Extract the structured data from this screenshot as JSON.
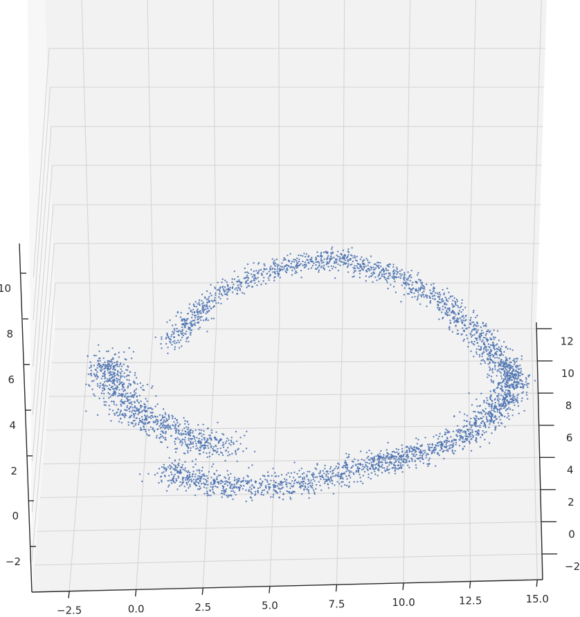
{
  "chart_data": {
    "type": "scatter",
    "projection": "3d",
    "title": "",
    "xlabel": "",
    "ylabel": "",
    "zlabel": "",
    "grid": true,
    "marker_color": "#4c72b0",
    "pane_color": "#f2f2f2",
    "x_ticks": [
      "−2.5",
      "0.0",
      "2.5",
      "5.0",
      "7.5",
      "10.0",
      "12.5",
      "15.0"
    ],
    "y_ticks": [
      "−2",
      "0",
      "2",
      "4",
      "6",
      "8",
      "10",
      "12"
    ],
    "z_ticks": [
      "−2",
      "0",
      "2",
      "4",
      "6",
      "8",
      "10"
    ],
    "xlim": [
      -3.9,
      15.2
    ],
    "ylim": [
      -3.6,
      12.4
    ],
    "zlim": [
      -3.3,
      11.7
    ],
    "point_cloud": {
      "description_free": true,
      "ring_center": [
        7.0,
        6.0
      ],
      "segments": [
        {
          "from": [
            7.4,
            11.0
          ],
          "to": [
            14.2,
            3.5
          ],
          "spread": 0.9,
          "count": 900
        },
        {
          "from": [
            14.2,
            3.5
          ],
          "to": [
            9.0,
            -1.5
          ],
          "spread": 1.0,
          "count": 900
        },
        {
          "from": [
            9.0,
            -1.5
          ],
          "to": [
            1.0,
            -1.8
          ],
          "spread": 1.1,
          "count": 800
        },
        {
          "from": [
            7.4,
            11.0
          ],
          "to": [
            1.0,
            6.0
          ],
          "spread": 0.8,
          "count": 600
        },
        {
          "from": [
            -1.5,
            5.0
          ],
          "to": [
            3.5,
            -0.5
          ],
          "spread": 1.2,
          "count": 900
        }
      ]
    }
  }
}
